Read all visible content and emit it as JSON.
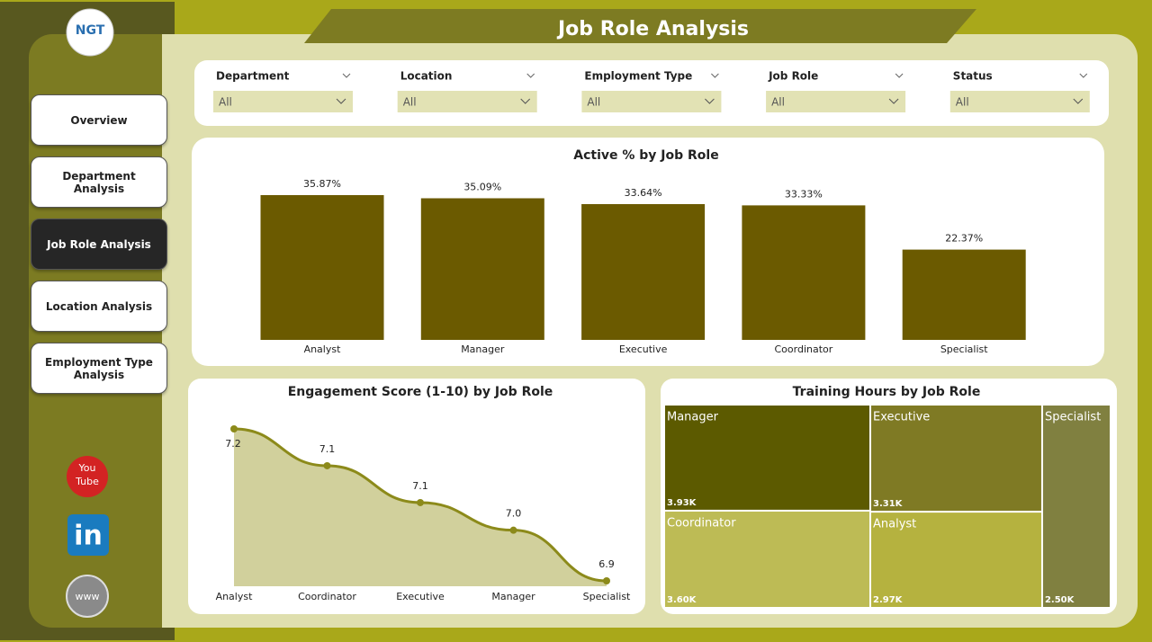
{
  "header": {
    "title": "Job Role Analysis",
    "logo": "NGT"
  },
  "nav": [
    "Overview",
    "Department Analysis",
    "Job Role Analysis",
    "Location Analysis",
    "Employment Type Analysis"
  ],
  "nav_active": 2,
  "social": {
    "youtube": [
      "You",
      "Tube"
    ],
    "linkedin": "in",
    "web": "www"
  },
  "filters": [
    {
      "label": "Department",
      "value": "All"
    },
    {
      "label": "Location",
      "value": "All"
    },
    {
      "label": "Employment Type",
      "value": "All"
    },
    {
      "label": "Job Role",
      "value": "All"
    },
    {
      "label": "Status",
      "value": "All"
    }
  ],
  "chart_data": [
    {
      "type": "bar",
      "title": "Active % by Job Role",
      "categories": [
        "Analyst",
        "Manager",
        "Executive",
        "Coordinator",
        "Specialist"
      ],
      "values": [
        35.87,
        35.09,
        33.64,
        33.33,
        22.37
      ],
      "value_labels": [
        "35.87%",
        "35.09%",
        "33.64%",
        "33.33%",
        "22.37%"
      ],
      "color": "#6b5a00"
    },
    {
      "type": "area",
      "title": "Engagement Score (1-10) by Job Role",
      "categories": [
        "Analyst",
        "Coordinator",
        "Executive",
        "Manager",
        "Specialist"
      ],
      "values": [
        7.22,
        7.14,
        7.06,
        7.0,
        6.89
      ],
      "value_labels": [
        "7.2",
        "7.1",
        "7.1",
        "7.0",
        "6.9"
      ],
      "color": "#8c8a1a",
      "fill": "#d1d09c"
    },
    {
      "type": "treemap",
      "title": "Training Hours by Job Role",
      "categories": [
        "Manager",
        "Executive",
        "Coordinator",
        "Analyst",
        "Specialist"
      ],
      "values": [
        3930,
        3310,
        3600,
        2970,
        2500
      ],
      "value_labels": [
        "3.93K",
        "3.31K",
        "3.60K",
        "2.97K",
        "2.50K"
      ],
      "colors": [
        "#5c5a00",
        "#7f7a24",
        "#bdbb55",
        "#b5b23f",
        "#808040"
      ]
    }
  ]
}
